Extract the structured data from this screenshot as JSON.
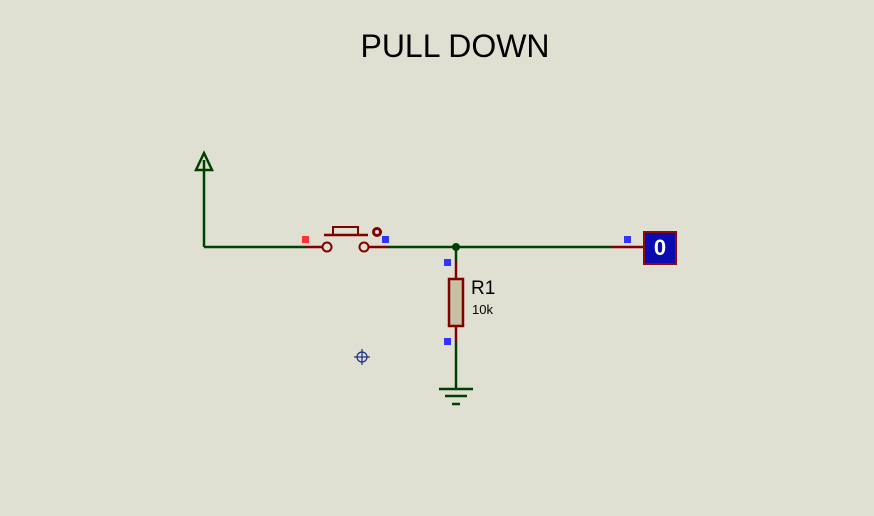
{
  "title": "PULL DOWN",
  "resistor": {
    "ref": "R1",
    "value": "10k"
  },
  "logic_probe": {
    "state": "0"
  },
  "colors": {
    "background": "#e0e0d2",
    "wire": "#004000",
    "component": "#800000",
    "pin_marker": "#3333ff",
    "active_pin_marker": "#ff3333",
    "probe_fill": "#0b0bb0"
  },
  "icons": [
    "power-terminal-icon",
    "pushbutton-icon",
    "resistor-icon",
    "ground-icon",
    "logic-probe-icon",
    "crosshair-cursor-icon"
  ]
}
